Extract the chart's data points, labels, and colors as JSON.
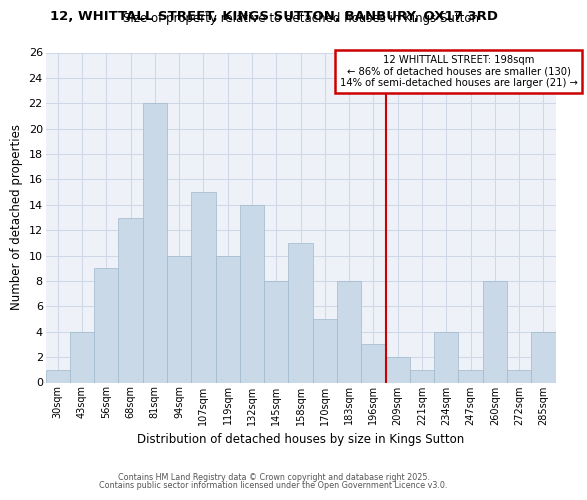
{
  "title": "12, WHITTALL STREET, KINGS SUTTON, BANBURY, OX17 3RD",
  "subtitle": "Size of property relative to detached houses in Kings Sutton",
  "xlabel": "Distribution of detached houses by size in Kings Sutton",
  "ylabel": "Number of detached properties",
  "bar_labels": [
    "30sqm",
    "43sqm",
    "56sqm",
    "68sqm",
    "81sqm",
    "94sqm",
    "107sqm",
    "119sqm",
    "132sqm",
    "145sqm",
    "158sqm",
    "170sqm",
    "183sqm",
    "196sqm",
    "209sqm",
    "221sqm",
    "234sqm",
    "247sqm",
    "260sqm",
    "272sqm",
    "285sqm"
  ],
  "bar_values": [
    1,
    4,
    9,
    13,
    22,
    10,
    15,
    10,
    14,
    8,
    11,
    5,
    8,
    3,
    2,
    1,
    4,
    1,
    8,
    1,
    4
  ],
  "bar_color": "#c9d9e8",
  "bar_edge_color": "#a0b8cc",
  "grid_color": "#d0d8e8",
  "bg_color": "#eef2f8",
  "red_line_x": 13.5,
  "annotation_text": "12 WHITTALL STREET: 198sqm\n← 86% of detached houses are smaller (130)\n14% of semi-detached houses are larger (21) →",
  "annotation_box_color": "#ffffff",
  "annotation_border_color": "#cc0000",
  "footer_line1": "Contains HM Land Registry data © Crown copyright and database right 2025.",
  "footer_line2": "Contains public sector information licensed under the Open Government Licence v3.0.",
  "ylim": [
    0,
    26
  ],
  "yticks": [
    0,
    2,
    4,
    6,
    8,
    10,
    12,
    14,
    16,
    18,
    20,
    22,
    24,
    26
  ]
}
